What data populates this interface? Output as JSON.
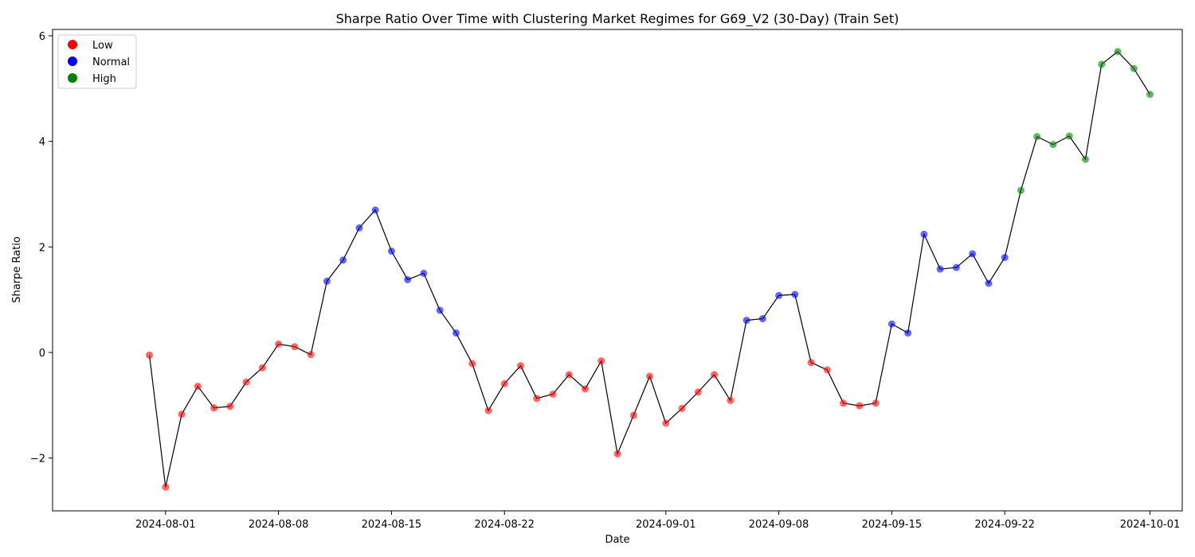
{
  "chart_data": {
    "type": "scatter",
    "title": "Sharpe Ratio Over Time with Clustering Market Regimes for G69_V2 (30-Day) (Train Set)",
    "xlabel": "Date",
    "ylabel": "Sharpe Ratio",
    "xlim": [
      "2024-07-25",
      "2024-10-03"
    ],
    "ylim": [
      -3.0,
      6.12
    ],
    "x_ticks": [
      "2024-08-01",
      "2024-08-08",
      "2024-08-15",
      "2024-08-22",
      "2024-09-01",
      "2024-09-08",
      "2024-09-15",
      "2024-09-22",
      "2024-10-01"
    ],
    "y_ticks": [
      -2,
      0,
      2,
      4,
      6
    ],
    "grid": false,
    "legend_position": "top-left",
    "line_color": "#000000",
    "regimes": [
      {
        "name": "Low",
        "color": "#ff0000"
      },
      {
        "name": "Normal",
        "color": "#0000ff"
      },
      {
        "name": "High",
        "color": "#008000"
      }
    ],
    "points": [
      {
        "x": "2024-07-31",
        "y": -0.05,
        "regime": "Low"
      },
      {
        "x": "2024-08-01",
        "y": -2.55,
        "regime": "Low"
      },
      {
        "x": "2024-08-02",
        "y": -1.17,
        "regime": "Low"
      },
      {
        "x": "2024-08-03",
        "y": -0.64,
        "regime": "Low"
      },
      {
        "x": "2024-08-04",
        "y": -1.05,
        "regime": "Low"
      },
      {
        "x": "2024-08-05",
        "y": -1.02,
        "regime": "Low"
      },
      {
        "x": "2024-08-06",
        "y": -0.56,
        "regime": "Low"
      },
      {
        "x": "2024-08-07",
        "y": -0.29,
        "regime": "Low"
      },
      {
        "x": "2024-08-08",
        "y": 0.16,
        "regime": "Low"
      },
      {
        "x": "2024-08-09",
        "y": 0.11,
        "regime": "Low"
      },
      {
        "x": "2024-08-10",
        "y": -0.04,
        "regime": "Low"
      },
      {
        "x": "2024-08-11",
        "y": 1.35,
        "regime": "Normal"
      },
      {
        "x": "2024-08-12",
        "y": 1.75,
        "regime": "Normal"
      },
      {
        "x": "2024-08-13",
        "y": 2.36,
        "regime": "Normal"
      },
      {
        "x": "2024-08-14",
        "y": 2.7,
        "regime": "Normal"
      },
      {
        "x": "2024-08-15",
        "y": 1.92,
        "regime": "Normal"
      },
      {
        "x": "2024-08-16",
        "y": 1.38,
        "regime": "Normal"
      },
      {
        "x": "2024-08-17",
        "y": 1.5,
        "regime": "Normal"
      },
      {
        "x": "2024-08-18",
        "y": 0.8,
        "regime": "Normal"
      },
      {
        "x": "2024-08-19",
        "y": 0.37,
        "regime": "Normal"
      },
      {
        "x": "2024-08-20",
        "y": -0.21,
        "regime": "Low"
      },
      {
        "x": "2024-08-21",
        "y": -1.1,
        "regime": "Low"
      },
      {
        "x": "2024-08-22",
        "y": -0.59,
        "regime": "Low"
      },
      {
        "x": "2024-08-23",
        "y": -0.25,
        "regime": "Low"
      },
      {
        "x": "2024-08-24",
        "y": -0.87,
        "regime": "Low"
      },
      {
        "x": "2024-08-25",
        "y": -0.79,
        "regime": "Low"
      },
      {
        "x": "2024-08-26",
        "y": -0.42,
        "regime": "Low"
      },
      {
        "x": "2024-08-27",
        "y": -0.69,
        "regime": "Low"
      },
      {
        "x": "2024-08-28",
        "y": -0.16,
        "regime": "Low"
      },
      {
        "x": "2024-08-29",
        "y": -1.92,
        "regime": "Low"
      },
      {
        "x": "2024-08-30",
        "y": -1.19,
        "regime": "Low"
      },
      {
        "x": "2024-08-31",
        "y": -0.45,
        "regime": "Low"
      },
      {
        "x": "2024-09-01",
        "y": -1.34,
        "regime": "Low"
      },
      {
        "x": "2024-09-02",
        "y": -1.06,
        "regime": "Low"
      },
      {
        "x": "2024-09-03",
        "y": -0.75,
        "regime": "Low"
      },
      {
        "x": "2024-09-04",
        "y": -0.42,
        "regime": "Low"
      },
      {
        "x": "2024-09-05",
        "y": -0.91,
        "regime": "Low"
      },
      {
        "x": "2024-09-06",
        "y": 0.61,
        "regime": "Normal"
      },
      {
        "x": "2024-09-07",
        "y": 0.64,
        "regime": "Normal"
      },
      {
        "x": "2024-09-08",
        "y": 1.08,
        "regime": "Normal"
      },
      {
        "x": "2024-09-09",
        "y": 1.1,
        "regime": "Normal"
      },
      {
        "x": "2024-09-10",
        "y": -0.19,
        "regime": "Low"
      },
      {
        "x": "2024-09-11",
        "y": -0.33,
        "regime": "Low"
      },
      {
        "x": "2024-09-12",
        "y": -0.96,
        "regime": "Low"
      },
      {
        "x": "2024-09-13",
        "y": -1.01,
        "regime": "Low"
      },
      {
        "x": "2024-09-14",
        "y": -0.96,
        "regime": "Low"
      },
      {
        "x": "2024-09-15",
        "y": 0.54,
        "regime": "Normal"
      },
      {
        "x": "2024-09-16",
        "y": 0.37,
        "regime": "Normal"
      },
      {
        "x": "2024-09-17",
        "y": 2.24,
        "regime": "Normal"
      },
      {
        "x": "2024-09-18",
        "y": 1.58,
        "regime": "Normal"
      },
      {
        "x": "2024-09-19",
        "y": 1.61,
        "regime": "Normal"
      },
      {
        "x": "2024-09-20",
        "y": 1.87,
        "regime": "Normal"
      },
      {
        "x": "2024-09-21",
        "y": 1.31,
        "regime": "Normal"
      },
      {
        "x": "2024-09-22",
        "y": 1.8,
        "regime": "Normal"
      },
      {
        "x": "2024-09-23",
        "y": 3.07,
        "regime": "High"
      },
      {
        "x": "2024-09-24",
        "y": 4.09,
        "regime": "High"
      },
      {
        "x": "2024-09-25",
        "y": 3.94,
        "regime": "High"
      },
      {
        "x": "2024-09-26",
        "y": 4.1,
        "regime": "High"
      },
      {
        "x": "2024-09-27",
        "y": 3.66,
        "regime": "High"
      },
      {
        "x": "2024-09-28",
        "y": 5.46,
        "regime": "High"
      },
      {
        "x": "2024-09-29",
        "y": 5.7,
        "regime": "High"
      },
      {
        "x": "2024-09-30",
        "y": 5.38,
        "regime": "High"
      },
      {
        "x": "2024-10-01",
        "y": 4.89,
        "regime": "High"
      }
    ]
  }
}
